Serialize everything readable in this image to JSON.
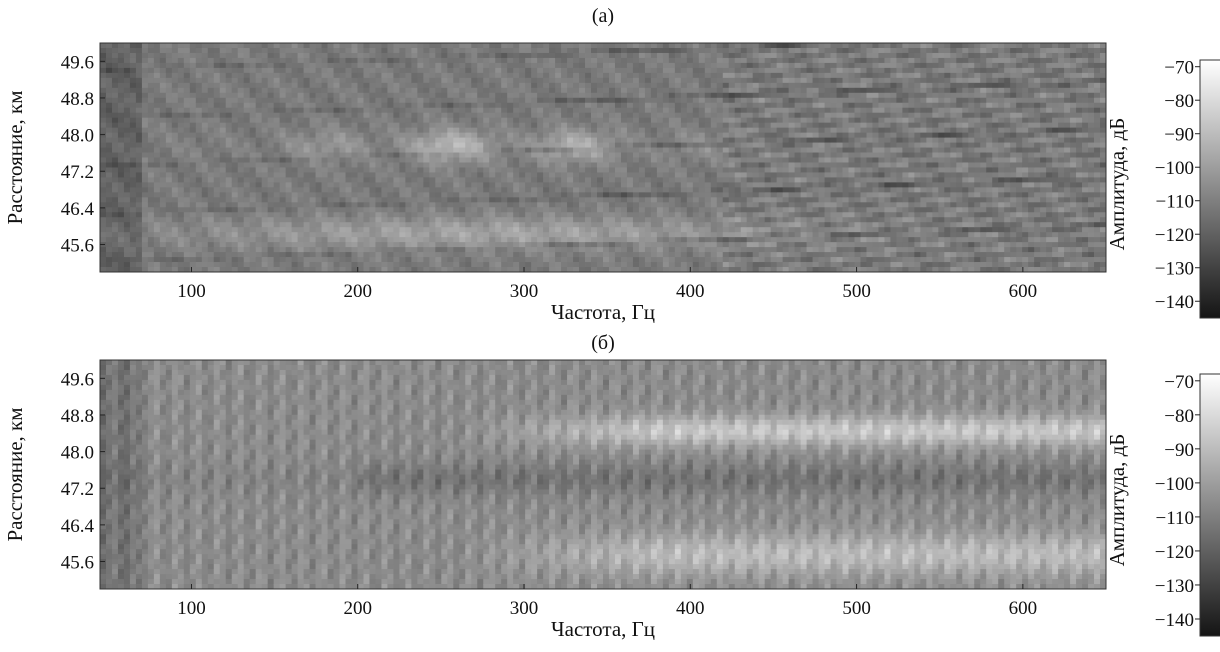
{
  "chart_data": [
    {
      "type": "heatmap",
      "title": "(а)",
      "xlabel": "Частота, Гц",
      "ylabel": "Расстояние, км",
      "colorbar_label": "Амплитуда, дБ",
      "xlim": [
        45,
        650
      ],
      "ylim": [
        45.0,
        50.0
      ],
      "xticks": [
        100,
        200,
        300,
        400,
        500,
        600
      ],
      "yticks": [
        45.6,
        46.4,
        47.2,
        48.0,
        48.8,
        49.6
      ],
      "ytick_labels": [
        "45.6",
        "46.4",
        "47.2",
        "48.0",
        "48.8",
        "49.6"
      ],
      "clim": [
        -145,
        -68
      ],
      "cticks": [
        -70,
        -80,
        -90,
        -100,
        -110,
        -120,
        -130,
        -140
      ],
      "colormap": "gray",
      "grid": false,
      "features": [
        {
          "kind": "bright-band",
          "freq_range": [
            170,
            400
          ],
          "range_km": [
            47.2,
            48.2
          ],
          "level_db": -85
        },
        {
          "kind": "bright-band",
          "freq_range": [
            100,
            450
          ],
          "range_km": [
            45.6,
            46.2
          ],
          "level_db": -95
        },
        {
          "kind": "striations",
          "freq_range": [
            400,
            650
          ],
          "range_km": [
            46.4,
            49.6
          ],
          "level_db": -105
        }
      ]
    },
    {
      "type": "heatmap",
      "title": "(б)",
      "xlabel": "Частота, Гц",
      "ylabel": "Расстояние, км",
      "colorbar_label": "Амплитуда, дБ",
      "xlim": [
        45,
        650
      ],
      "ylim": [
        45.0,
        50.0
      ],
      "xticks": [
        100,
        200,
        300,
        400,
        500,
        600
      ],
      "yticks": [
        45.6,
        46.4,
        47.2,
        48.0,
        48.8,
        49.6
      ],
      "ytick_labels": [
        "45.6",
        "46.4",
        "47.2",
        "48.0",
        "48.8",
        "49.6"
      ],
      "clim": [
        -145,
        -68
      ],
      "cticks": [
        -70,
        -80,
        -90,
        -100,
        -110,
        -120,
        -130,
        -140
      ],
      "colormap": "gray",
      "grid": false,
      "features": [
        {
          "kind": "bright-band",
          "freq_range": [
            300,
            650
          ],
          "range_km": [
            48.0,
            48.8
          ],
          "level_db": -82
        },
        {
          "kind": "bright-band",
          "freq_range": [
            320,
            650
          ],
          "range_km": [
            45.3,
            46.3
          ],
          "level_db": -88
        },
        {
          "kind": "dark-band",
          "freq_range": [
            200,
            650
          ],
          "range_km": [
            47.0,
            47.8
          ],
          "level_db": -108
        },
        {
          "kind": "striations",
          "freq_range": [
            45,
            300
          ],
          "range_km": [
            45.0,
            50.0
          ],
          "level_db": -100
        }
      ]
    }
  ]
}
